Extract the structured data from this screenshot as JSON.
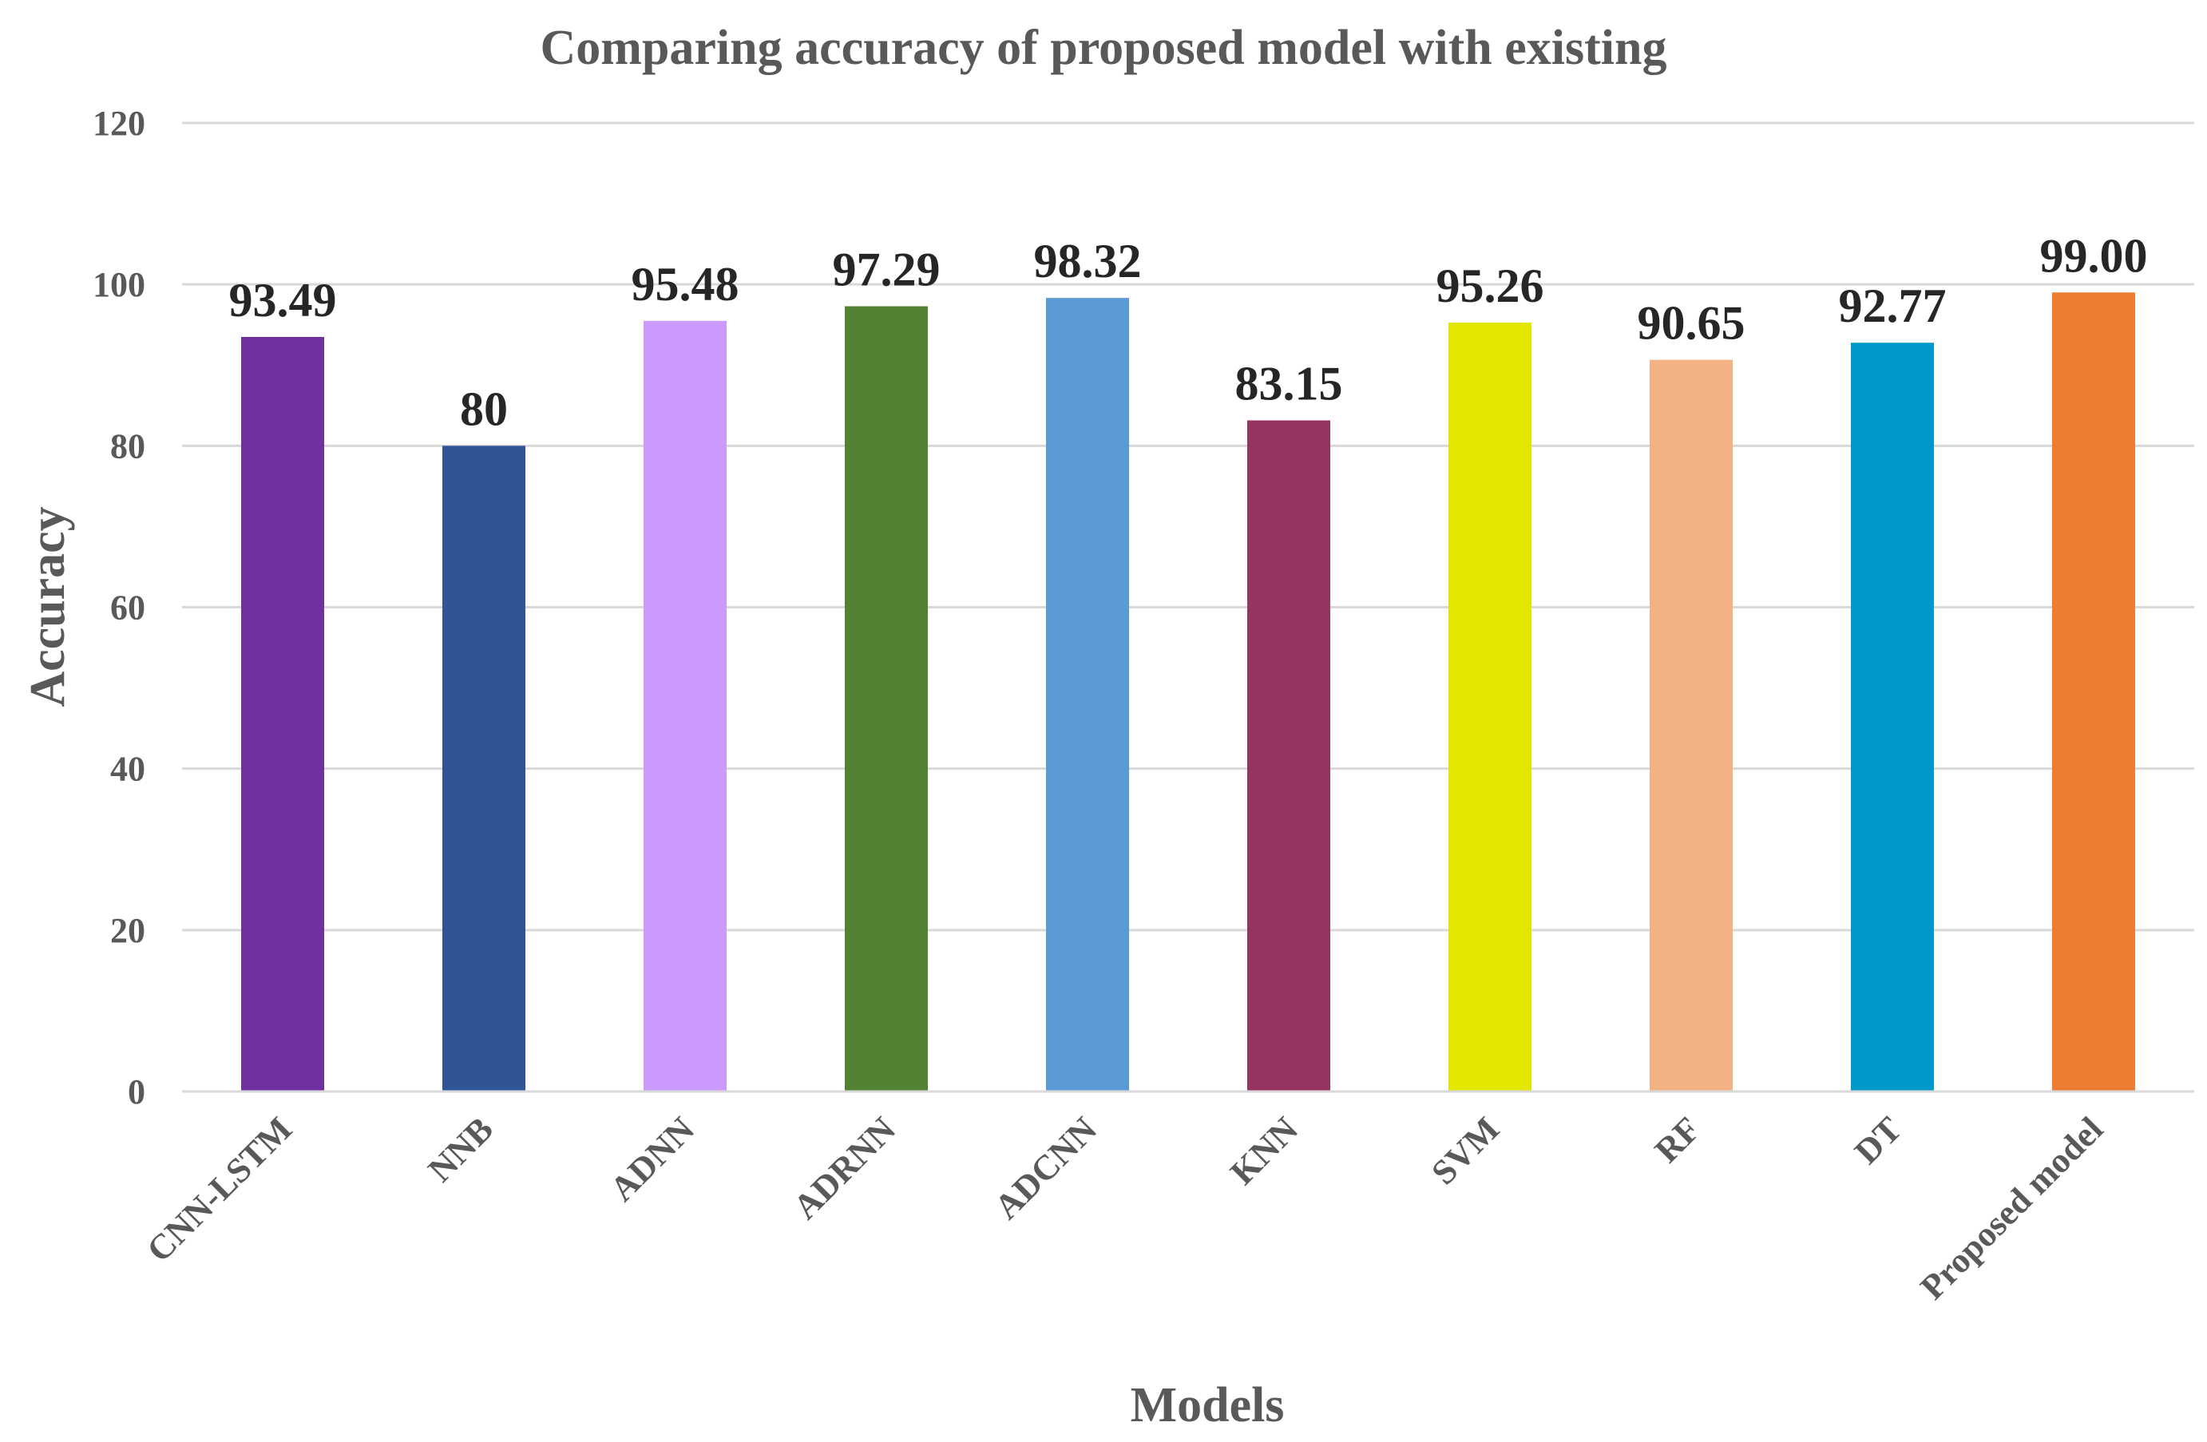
{
  "chart_data": {
    "type": "bar",
    "title": "Comparing accuracy of proposed model with existing",
    "xlabel": "Models",
    "ylabel": "Accuracy",
    "ylim": [
      0,
      120
    ],
    "yticks": [
      0,
      20,
      40,
      60,
      80,
      100,
      120
    ],
    "grid": true,
    "legend": "none",
    "categories": [
      "CNN-LSTM",
      "NNB",
      "ADNN",
      "ADRNN",
      "ADCNN",
      "KNN",
      "SVM",
      "RF",
      "DT",
      "Proposed model"
    ],
    "values": [
      93.49,
      80,
      95.48,
      97.29,
      98.32,
      83.15,
      95.26,
      90.65,
      92.77,
      99.0
    ],
    "data_labels": [
      "93.49",
      "80",
      "95.48",
      "97.29",
      "98.32",
      "83.15",
      "95.26",
      "90.65",
      "92.77",
      "99.00"
    ],
    "colors": [
      "#7030a0",
      "#2f5597",
      "#cc99ff",
      "#548235",
      "#5b9bd5",
      "#953460",
      "#e2e600",
      "#f4b183",
      "#0099cc",
      "#ed7d31"
    ]
  }
}
